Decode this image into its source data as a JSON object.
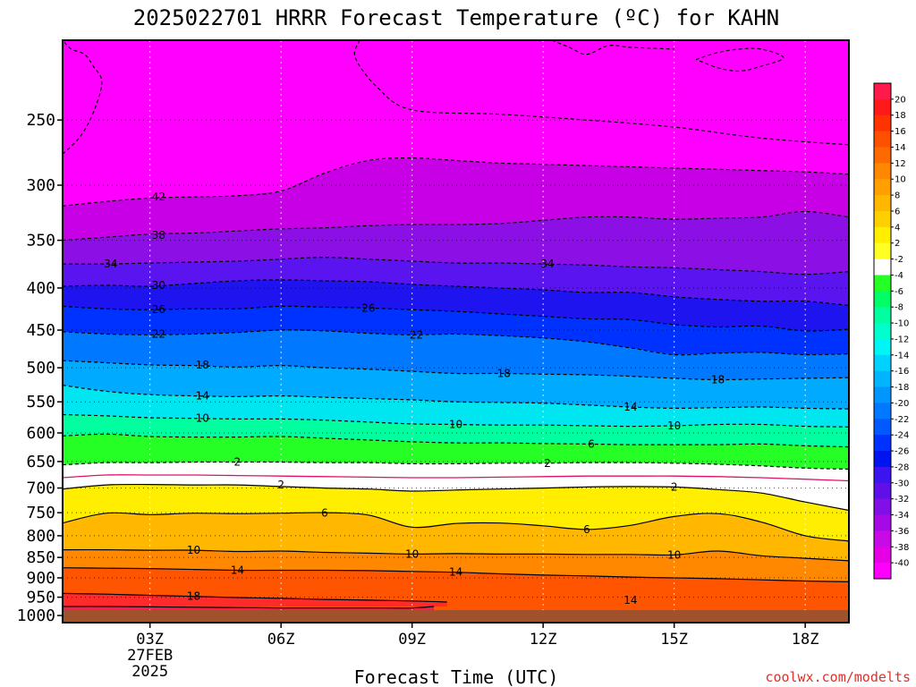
{
  "chart_data": {
    "type": "heatmap",
    "title": "2025022701 HRRR Forecast Temperature (ºC) for KAHN",
    "xlabel": "Forecast Time (UTC)",
    "ylabel": "",
    "x_ticks": [
      "03Z",
      "06Z",
      "09Z",
      "12Z",
      "15Z",
      "18Z"
    ],
    "x_tick_hours": [
      3,
      6,
      9,
      12,
      15,
      18
    ],
    "x_date_lines": [
      "27FEB",
      "2025"
    ],
    "xlim_hours": [
      1,
      19
    ],
    "y_ticks": [
      250,
      300,
      350,
      400,
      450,
      500,
      550,
      600,
      650,
      700,
      750,
      800,
      850,
      900,
      950,
      1000
    ],
    "ylim_hpa": [
      200,
      1020
    ],
    "y_scale": "log-pressure (inverted)",
    "ground_level_hpa": 985,
    "grid": true,
    "colorbar": {
      "placement": "right",
      "labels": [
        "20",
        "18",
        "16",
        "14",
        "12",
        "10",
        "8",
        "6",
        "4",
        "2",
        "-2",
        "-4",
        "-6",
        "-8",
        "-10",
        "-12",
        "-14",
        "-16",
        "-18",
        "-20",
        "-22",
        "-24",
        "-26",
        "-28",
        "-30",
        "-32",
        "-34",
        "-36",
        "-38",
        "-40"
      ],
      "colors": [
        "#ff1a4d",
        "#ff1a1a",
        "#ff3300",
        "#ff5000",
        "#ff6a00",
        "#ff8800",
        "#ff9f00",
        "#ffb700",
        "#ffd000",
        "#ffee00",
        "#ffff26",
        "#ffffff",
        "#26ff26",
        "#00ff66",
        "#00ff9f",
        "#00ffcc",
        "#00f5f5",
        "#00d2ff",
        "#00b4ff",
        "#0096ff",
        "#0078ff",
        "#005aff",
        "#0032ff",
        "#0014f0",
        "#3c14f0",
        "#5f10e6",
        "#8210e6",
        "#a50ae6",
        "#c80ae6",
        "#e600e6",
        "#ff00ff"
      ]
    },
    "ground_color": "#a0522d",
    "contours": [
      {
        "label": "20",
        "hours": [
          1,
          2,
          3,
          4,
          5,
          6,
          7,
          8,
          9,
          9.5
        ],
        "values_hpa": [
          975,
          975,
          976,
          977,
          978,
          979,
          979,
          979,
          979,
          975
        ]
      },
      {
        "label": "18",
        "hours": [
          1,
          2,
          3,
          4,
          5,
          6,
          7,
          8,
          9,
          9.8
        ],
        "values_hpa": [
          940,
          942,
          945,
          948,
          951,
          953,
          956,
          958,
          960,
          963
        ]
      },
      {
        "label": "14",
        "hours": [
          1,
          2,
          3,
          4,
          5,
          6,
          7,
          8,
          9,
          10,
          11,
          12,
          13,
          14,
          15,
          16,
          17,
          18,
          19
        ],
        "values_hpa": [
          875,
          876,
          877,
          879,
          881,
          881,
          881,
          882,
          884,
          886,
          890,
          893,
          895,
          898,
          900,
          902,
          905,
          908,
          910
        ]
      },
      {
        "label": "10",
        "hours": [
          1,
          2,
          3,
          4,
          5,
          6,
          7,
          8,
          9,
          10,
          11,
          12,
          13,
          14,
          15,
          16,
          17,
          18,
          19
        ],
        "values_hpa": [
          832,
          832,
          833,
          833,
          836,
          835,
          838,
          840,
          842,
          841,
          842,
          842,
          843,
          843,
          844,
          835,
          846,
          852,
          858
        ]
      },
      {
        "label": "6",
        "hours": [
          1,
          2,
          3,
          4,
          5,
          6,
          7,
          8,
          9,
          10,
          11,
          12,
          13,
          14,
          15,
          16,
          17,
          18,
          19
        ],
        "values_hpa": [
          772,
          751,
          754,
          751,
          752,
          751,
          750,
          755,
          781,
          773,
          772,
          778,
          786,
          777,
          758,
          752,
          770,
          800,
          812
        ]
      },
      {
        "label": "2",
        "hours": [
          1,
          2,
          3,
          4,
          5,
          6,
          7,
          8,
          9,
          10,
          11,
          12,
          13,
          14,
          15,
          16,
          17,
          18,
          19
        ],
        "values_hpa": [
          702,
          694,
          693,
          694,
          694,
          697,
          700,
          702,
          706,
          704,
          702,
          700,
          698,
          697,
          698,
          703,
          710,
          728,
          745
        ]
      },
      {
        "label": "-2",
        "hours": [
          1,
          2,
          3,
          4,
          5,
          6,
          7,
          8,
          9,
          10,
          11,
          12,
          13,
          14,
          15,
          16,
          17,
          18,
          19
        ],
        "values_hpa": [
          656,
          652,
          652,
          651,
          651,
          651,
          652,
          652,
          654,
          654,
          653,
          653,
          652,
          652,
          653,
          655,
          658,
          662,
          664
        ]
      },
      {
        "label": "-6",
        "hours": [
          1,
          2,
          3,
          4,
          5,
          6,
          7,
          8,
          9,
          10,
          11,
          12,
          13,
          14,
          15,
          16,
          17,
          18,
          19
        ],
        "values_hpa": [
          605,
          602,
          606,
          607,
          607,
          606,
          609,
          612,
          615,
          617,
          617,
          618,
          619,
          620,
          620,
          620,
          619,
          622,
          624
        ]
      },
      {
        "label": "-10",
        "hours": [
          1,
          2,
          3,
          4,
          5,
          6,
          7,
          8,
          9,
          10,
          11,
          12,
          13,
          14,
          15,
          16,
          17,
          18,
          19
        ],
        "values_hpa": [
          570,
          572,
          575,
          576,
          577,
          577,
          579,
          582,
          585,
          586,
          587,
          587,
          588,
          589,
          588,
          586,
          586,
          589,
          590
        ]
      },
      {
        "label": "-14",
        "hours": [
          1,
          2,
          3,
          4,
          5,
          6,
          7,
          8,
          9,
          10,
          11,
          12,
          13,
          14,
          15,
          16,
          17,
          18,
          19
        ],
        "values_hpa": [
          525,
          534,
          539,
          541,
          542,
          541,
          543,
          545,
          547,
          550,
          551,
          552,
          555,
          558,
          560,
          559,
          558,
          560,
          561
        ]
      },
      {
        "label": "-18",
        "hours": [
          1,
          2,
          3,
          4,
          5,
          6,
          7,
          8,
          9,
          10,
          11,
          12,
          13,
          14,
          15,
          16,
          17,
          18,
          19
        ],
        "values_hpa": [
          490,
          493,
          496,
          497,
          499,
          497,
          500,
          502,
          505,
          508,
          508,
          509,
          510,
          512,
          515,
          517,
          516,
          515,
          514
        ]
      },
      {
        "label": "-22",
        "hours": [
          1,
          2,
          3,
          4,
          5,
          6,
          7,
          8,
          9,
          10,
          11,
          12,
          13,
          14,
          15,
          16,
          17,
          18,
          19
        ],
        "values_hpa": [
          452,
          455,
          456,
          455,
          453,
          450,
          451,
          454,
          456,
          455,
          457,
          460,
          465,
          473,
          482,
          480,
          479,
          482,
          481
        ]
      },
      {
        "label": "-26",
        "hours": [
          1,
          2,
          3,
          4,
          5,
          6,
          7,
          8,
          9,
          10,
          11,
          12,
          13,
          14,
          15,
          16,
          17,
          18,
          19
        ],
        "values_hpa": [
          421,
          424,
          425,
          424,
          424,
          421,
          422,
          423,
          425,
          427,
          430,
          433,
          436,
          437,
          443,
          446,
          445,
          451,
          449
        ]
      },
      {
        "label": "-30",
        "hours": [
          1,
          2,
          3,
          4,
          5,
          6,
          7,
          8,
          9,
          10,
          11,
          12,
          13,
          14,
          15,
          16,
          17,
          18,
          19
        ],
        "values_hpa": [
          398,
          397,
          398,
          395,
          392,
          391,
          392,
          393,
          396,
          398,
          400,
          402,
          405,
          405,
          410,
          413,
          415,
          415,
          420
        ]
      },
      {
        "label": "-34",
        "hours": [
          1,
          2,
          3,
          4,
          5,
          6,
          7,
          8,
          9,
          10,
          11,
          12,
          13,
          14,
          15,
          16,
          17,
          18,
          19
        ],
        "values_hpa": [
          374,
          374,
          373,
          372,
          371,
          369,
          367,
          369,
          371,
          373,
          373,
          374,
          375,
          377,
          378,
          380,
          382,
          385,
          382
        ]
      },
      {
        "label": "-38",
        "hours": [
          1,
          2,
          3,
          4,
          5,
          6,
          7,
          8,
          9,
          10,
          11,
          12,
          13,
          14,
          15,
          16,
          17,
          18,
          19
        ],
        "values_hpa": [
          350,
          347,
          344,
          343,
          341,
          339,
          338,
          336,
          335,
          335,
          334,
          331,
          328,
          328,
          330,
          329,
          328,
          323,
          328
        ]
      },
      {
        "label": "-42",
        "hours": [
          1,
          2,
          3,
          4,
          5,
          6,
          7,
          8,
          9,
          10,
          11,
          12,
          13,
          14,
          15,
          16,
          17,
          18,
          19
        ],
        "values_hpa": [
          318,
          314,
          311,
          310,
          309,
          305,
          290,
          280,
          278,
          280,
          282,
          283,
          284,
          285,
          286,
          287,
          288,
          289,
          291
        ]
      },
      {
        "label": "-46",
        "hours": [
          1,
          1.4,
          1.7,
          1.9,
          1.7,
          1.5,
          1.2,
          1
        ],
        "values_hpa": [
          275,
          262,
          245,
          225,
          215,
          208,
          205,
          200
        ]
      },
      {
        "label": "-46",
        "hours": [
          7.8,
          7.7,
          8.2,
          9,
          11,
          13,
          15,
          17,
          19
        ],
        "values_hpa": [
          200,
          210,
          228,
          243,
          246,
          250,
          255,
          263,
          268
        ]
      },
      {
        "label": "-46",
        "hours": [
          12.2,
          12.6,
          13,
          13.5,
          14,
          15
        ],
        "values_hpa": [
          200,
          204,
          208,
          203,
          204,
          205
        ]
      },
      {
        "label": "-46",
        "hours": [
          15.5,
          16,
          16.5,
          17,
          17.5,
          17,
          16.5,
          16,
          15.5
        ],
        "values_hpa": [
          211,
          207,
          205,
          205,
          210,
          215,
          218,
          216,
          211
        ]
      }
    ],
    "freezing_line": {
      "label": "0",
      "hours": [
        1,
        2,
        3,
        4,
        5,
        6,
        7,
        8,
        9,
        10,
        11,
        12,
        13,
        14,
        15,
        16,
        17,
        18,
        19
      ],
      "values_hpa": [
        680,
        675,
        675,
        675,
        676,
        677,
        678,
        679,
        680,
        680,
        679,
        678,
        677,
        677,
        677,
        678,
        680,
        683,
        686
      ]
    },
    "contour_labels": [
      {
        "text": "42",
        "hour": 3.2,
        "p": 310
      },
      {
        "text": "38",
        "hour": 3.2,
        "p": 345
      },
      {
        "text": "34",
        "hour": 2.1,
        "p": 374
      },
      {
        "text": "30",
        "hour": 3.2,
        "p": 397
      },
      {
        "text": "26",
        "hour": 3.2,
        "p": 425
      },
      {
        "text": "22",
        "hour": 3.2,
        "p": 455
      },
      {
        "text": "18",
        "hour": 4.2,
        "p": 496
      },
      {
        "text": "14",
        "hour": 4.2,
        "p": 541
      },
      {
        "text": "10",
        "hour": 4.2,
        "p": 576
      },
      {
        "text": "2",
        "hour": 5.0,
        "p": 651
      },
      {
        "text": "2",
        "hour": 6.0,
        "p": 694
      },
      {
        "text": "6",
        "hour": 7.0,
        "p": 751
      },
      {
        "text": "10",
        "hour": 4.0,
        "p": 833
      },
      {
        "text": "14",
        "hour": 5.0,
        "p": 881
      },
      {
        "text": "18",
        "hour": 4.0,
        "p": 948
      },
      {
        "text": "26",
        "hour": 8.0,
        "p": 423
      },
      {
        "text": "22",
        "hour": 9.1,
        "p": 456
      },
      {
        "text": "10",
        "hour": 10.0,
        "p": 586
      },
      {
        "text": "14",
        "hour": 10.0,
        "p": 886
      },
      {
        "text": "10",
        "hour": 9.0,
        "p": 842
      },
      {
        "text": "18",
        "hour": 11.1,
        "p": 508
      },
      {
        "text": "34",
        "hour": 12.1,
        "p": 374
      },
      {
        "text": "2",
        "hour": 12.1,
        "p": 653
      },
      {
        "text": "6",
        "hour": 13.1,
        "p": 619
      },
      {
        "text": "6",
        "hour": 13.0,
        "p": 786
      },
      {
        "text": "14",
        "hour": 14.0,
        "p": 558
      },
      {
        "text": "14",
        "hour": 14.0,
        "p": 958
      },
      {
        "text": "10",
        "hour": 15.0,
        "p": 588
      },
      {
        "text": "2",
        "hour": 15.0,
        "p": 698
      },
      {
        "text": "10",
        "hour": 15.0,
        "p": 844
      },
      {
        "text": "18",
        "hour": 16.0,
        "p": 517
      }
    ]
  },
  "credit": "coolwx.com/modelts"
}
